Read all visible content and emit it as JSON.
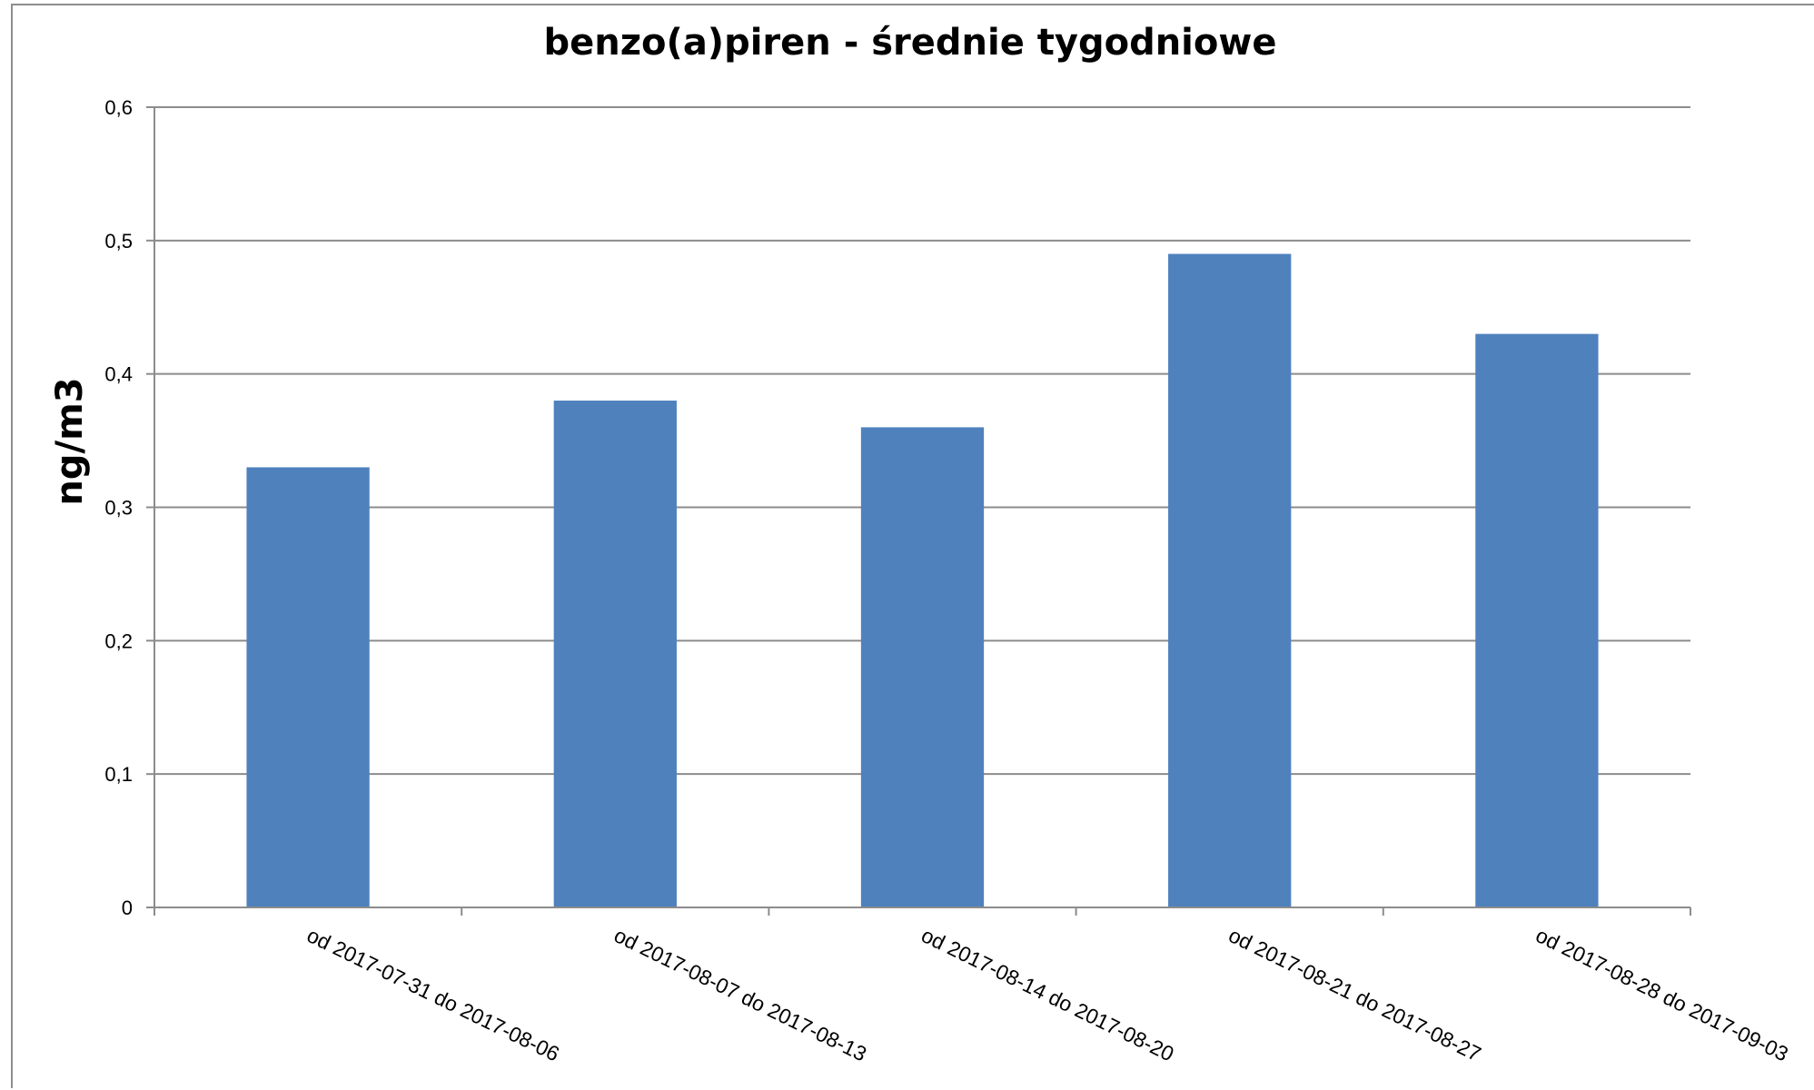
{
  "chart_data": {
    "type": "bar",
    "title": "benzo(a)piren - średnie tygodniowe",
    "xlabel": "",
    "ylabel": "ng/m3",
    "ylim": [
      0,
      0.6
    ],
    "yticks": [
      0,
      0.1,
      0.2,
      0.3,
      0.4,
      0.5,
      0.6
    ],
    "ytick_labels": [
      "0",
      "0,1",
      "0,2",
      "0,3",
      "0,4",
      "0,5",
      "0,6"
    ],
    "grid": true,
    "legend": "none",
    "categories": [
      "od 2017-07-31 do 2017-08-06",
      "od 2017-08-07 do 2017-08-13",
      "od 2017-08-14 do 2017-08-20",
      "od 2017-08-21 do 2017-08-27",
      "od 2017-08-28 do 2017-09-03"
    ],
    "values": [
      0.33,
      0.38,
      0.36,
      0.49,
      0.43
    ],
    "colors": {
      "bar": "#4f81bd",
      "grid": "#8c8c8c"
    }
  }
}
